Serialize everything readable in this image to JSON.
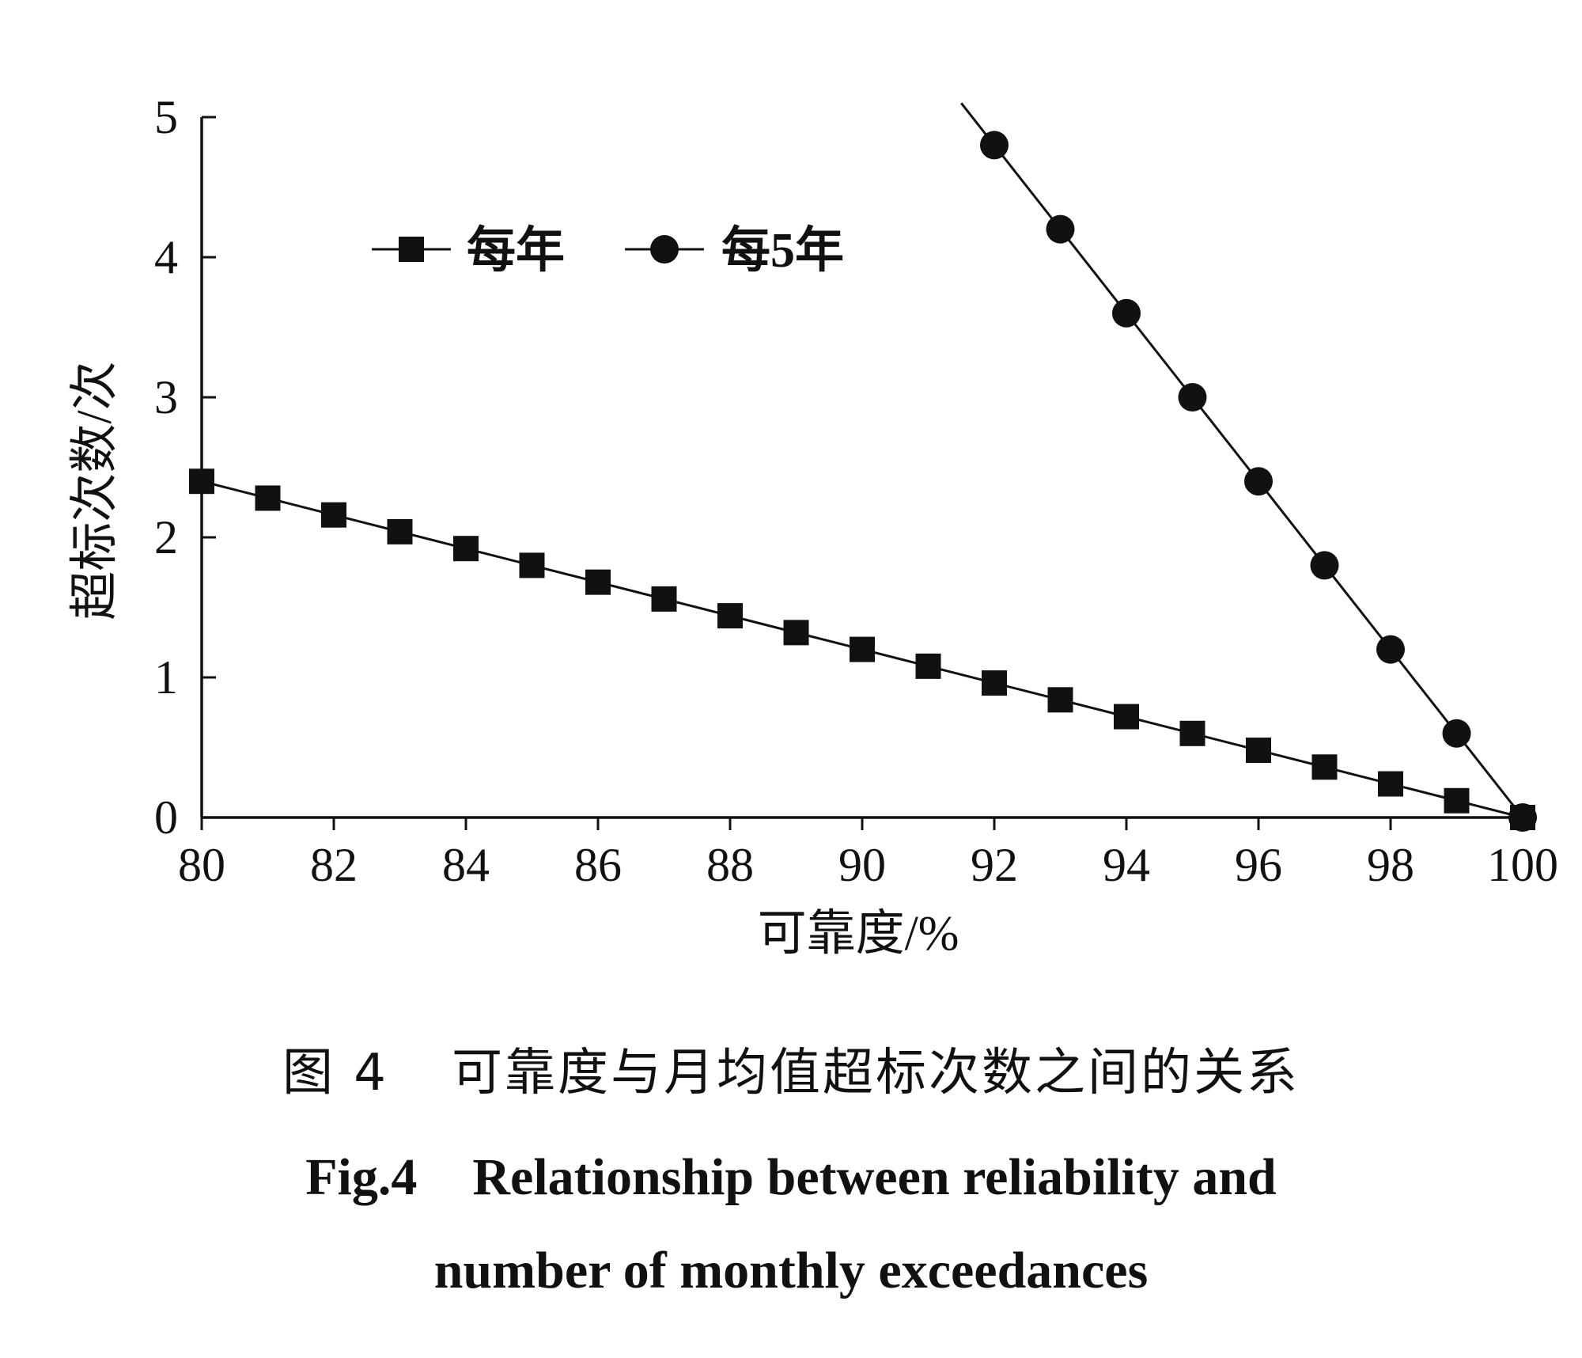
{
  "chart_data": {
    "type": "line",
    "xlabel": "可靠度/%",
    "ylabel": "超标次数/次",
    "xlim": [
      80,
      100
    ],
    "ylim": [
      0,
      5
    ],
    "xticks": [
      80,
      82,
      84,
      86,
      88,
      90,
      92,
      94,
      96,
      98,
      100
    ],
    "yticks": [
      0,
      1,
      2,
      3,
      4,
      5
    ],
    "grid": false,
    "legend_position": "top-left",
    "series": [
      {
        "name": "每年",
        "marker": "square",
        "x": [
          80,
          81,
          82,
          83,
          84,
          85,
          86,
          87,
          88,
          89,
          90,
          91,
          92,
          93,
          94,
          95,
          96,
          97,
          98,
          99,
          100
        ],
        "values": [
          2.4,
          2.28,
          2.16,
          2.04,
          1.92,
          1.8,
          1.68,
          1.56,
          1.44,
          1.32,
          1.2,
          1.08,
          0.96,
          0.84,
          0.72,
          0.6,
          0.48,
          0.36,
          0.24,
          0.12,
          0
        ]
      },
      {
        "name": "每5年",
        "marker": "circle",
        "x": [
          92,
          93,
          94,
          95,
          96,
          97,
          98,
          99,
          100
        ],
        "values": [
          4.8,
          4.2,
          3.6,
          3.0,
          2.4,
          1.8,
          1.2,
          0.6,
          0
        ],
        "line_extends_to": [
          91.5,
          5.1
        ]
      }
    ]
  },
  "caption": {
    "zh_label": "图 4",
    "zh_text": "可靠度与月均值超标次数之间的关系",
    "en_label": "Fig.4",
    "en_line1": "Relationship between reliability and",
    "en_line2": "number of monthly exceedances"
  }
}
